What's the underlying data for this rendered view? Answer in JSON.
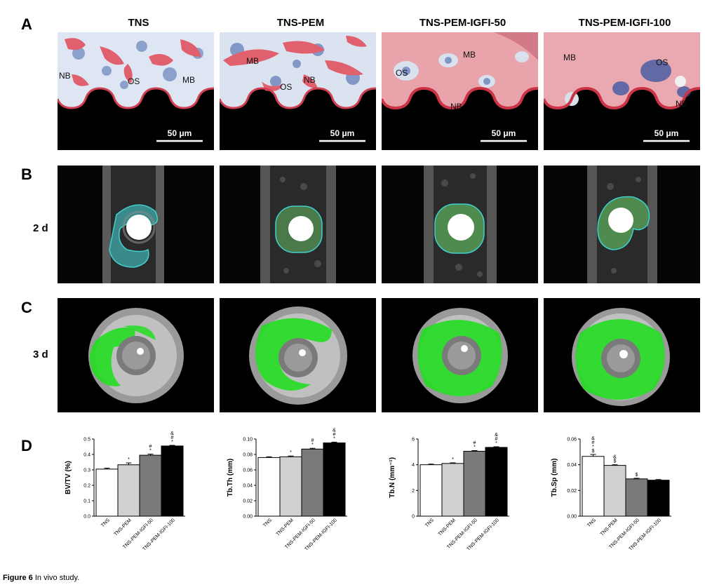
{
  "panel_letters": {
    "a": "A",
    "b": "B",
    "c": "C",
    "d": "D"
  },
  "column_titles": [
    "TNS",
    "TNS-PEM",
    "TNS-PEM-IGFI-50",
    "TNS-PEM-IGFI-100"
  ],
  "row_labels": {
    "b": "2 d",
    "c": "3 d"
  },
  "histology": {
    "scale_bar_label": "50 μm",
    "tiles": [
      {
        "labels": [
          "NB",
          "OS",
          "MB"
        ]
      },
      {
        "labels": [
          "MB",
          "OS",
          "NB"
        ]
      },
      {
        "labels": [
          "OS",
          "MB",
          "NB"
        ]
      },
      {
        "labels": [
          "MB",
          "OS",
          "NB"
        ]
      }
    ]
  },
  "colors": {
    "green_overlay": "#22dd22",
    "histo_pink": "#e0606e",
    "histo_blue": "#2a4fa0",
    "cyan_outline": "#3fd0d0"
  },
  "chart_data": [
    {
      "type": "bar",
      "ylabel": "BV/TV (%)",
      "categories": [
        "TNS",
        "TNS-PEM",
        "TNS-PEM-IGFI-50",
        "TNS-PEM-IGFI-100"
      ],
      "values": [
        0.305,
        0.333,
        0.395,
        0.455
      ],
      "errors": [
        0.006,
        0.012,
        0.007,
        0.004
      ],
      "bar_colors": [
        "#ffffff",
        "#d0d0d0",
        "#7a7a7a",
        "#000000"
      ],
      "ylim": [
        0,
        0.5
      ],
      "yticks": [
        "0.0",
        "0.1",
        "0.2",
        "0.3",
        "0.4",
        "0.5"
      ],
      "significance": [
        [],
        [
          "*"
        ],
        [
          "#",
          "*"
        ],
        [
          "&",
          "#",
          "*"
        ]
      ]
    },
    {
      "type": "bar",
      "ylabel": "Tb.Th (mm)",
      "categories": [
        "TNS",
        "TNS-PEM",
        "TNS-PEM-IGFI-50",
        "TNS-PEM-IGFI-100"
      ],
      "values": [
        0.076,
        0.077,
        0.087,
        0.095
      ],
      "errors": [
        0.001,
        0.001,
        0.001,
        0.001
      ],
      "bar_colors": [
        "#ffffff",
        "#d0d0d0",
        "#7a7a7a",
        "#000000"
      ],
      "ylim": [
        0,
        0.1
      ],
      "yticks": [
        "0.00",
        "0.02",
        "0.04",
        "0.06",
        "0.08",
        "0.10"
      ],
      "significance": [
        [],
        [
          "*"
        ],
        [
          "#",
          "*"
        ],
        [
          "&",
          "#",
          "*"
        ]
      ]
    },
    {
      "type": "bar",
      "ylabel": "Tb.N (mm⁻¹)",
      "categories": [
        "TNS",
        "TNS-PEM",
        "TNS-PEM-IGFI-50",
        "TNS-PEM-IGFI-100"
      ],
      "values": [
        4.0,
        4.1,
        5.05,
        5.35
      ],
      "errors": [
        0.05,
        0.05,
        0.05,
        0.05
      ],
      "bar_colors": [
        "#ffffff",
        "#d0d0d0",
        "#7a7a7a",
        "#000000"
      ],
      "ylim": [
        0,
        6
      ],
      "yticks": [
        "0",
        "2",
        "4",
        "6"
      ],
      "significance": [
        [],
        [
          "*"
        ],
        [
          "#",
          "*"
        ],
        [
          "&",
          "#",
          "*"
        ]
      ]
    },
    {
      "type": "bar",
      "ylabel": "Tb.Sp (mm)",
      "categories": [
        "TNS",
        "TNS-PEM",
        "TNS-PEM-IGFI-50",
        "TNS-PEM-IGFI-100"
      ],
      "values": [
        0.0465,
        0.0395,
        0.029,
        0.028
      ],
      "errors": [
        0.0015,
        0.0005,
        0.0005,
        0.0005
      ],
      "bar_colors": [
        "#ffffff",
        "#d0d0d0",
        "#7a7a7a",
        "#000000"
      ],
      "ylim": [
        0,
        0.06
      ],
      "yticks": [
        "0.00",
        "0.02",
        "0.04",
        "0.06"
      ],
      "significance": [
        [
          "&",
          "#",
          "*",
          "$"
        ],
        [
          "&",
          "$"
        ],
        [
          "$"
        ],
        []
      ]
    }
  ],
  "caption": {
    "bold": "Figure 6",
    "text": " In vivo study."
  }
}
